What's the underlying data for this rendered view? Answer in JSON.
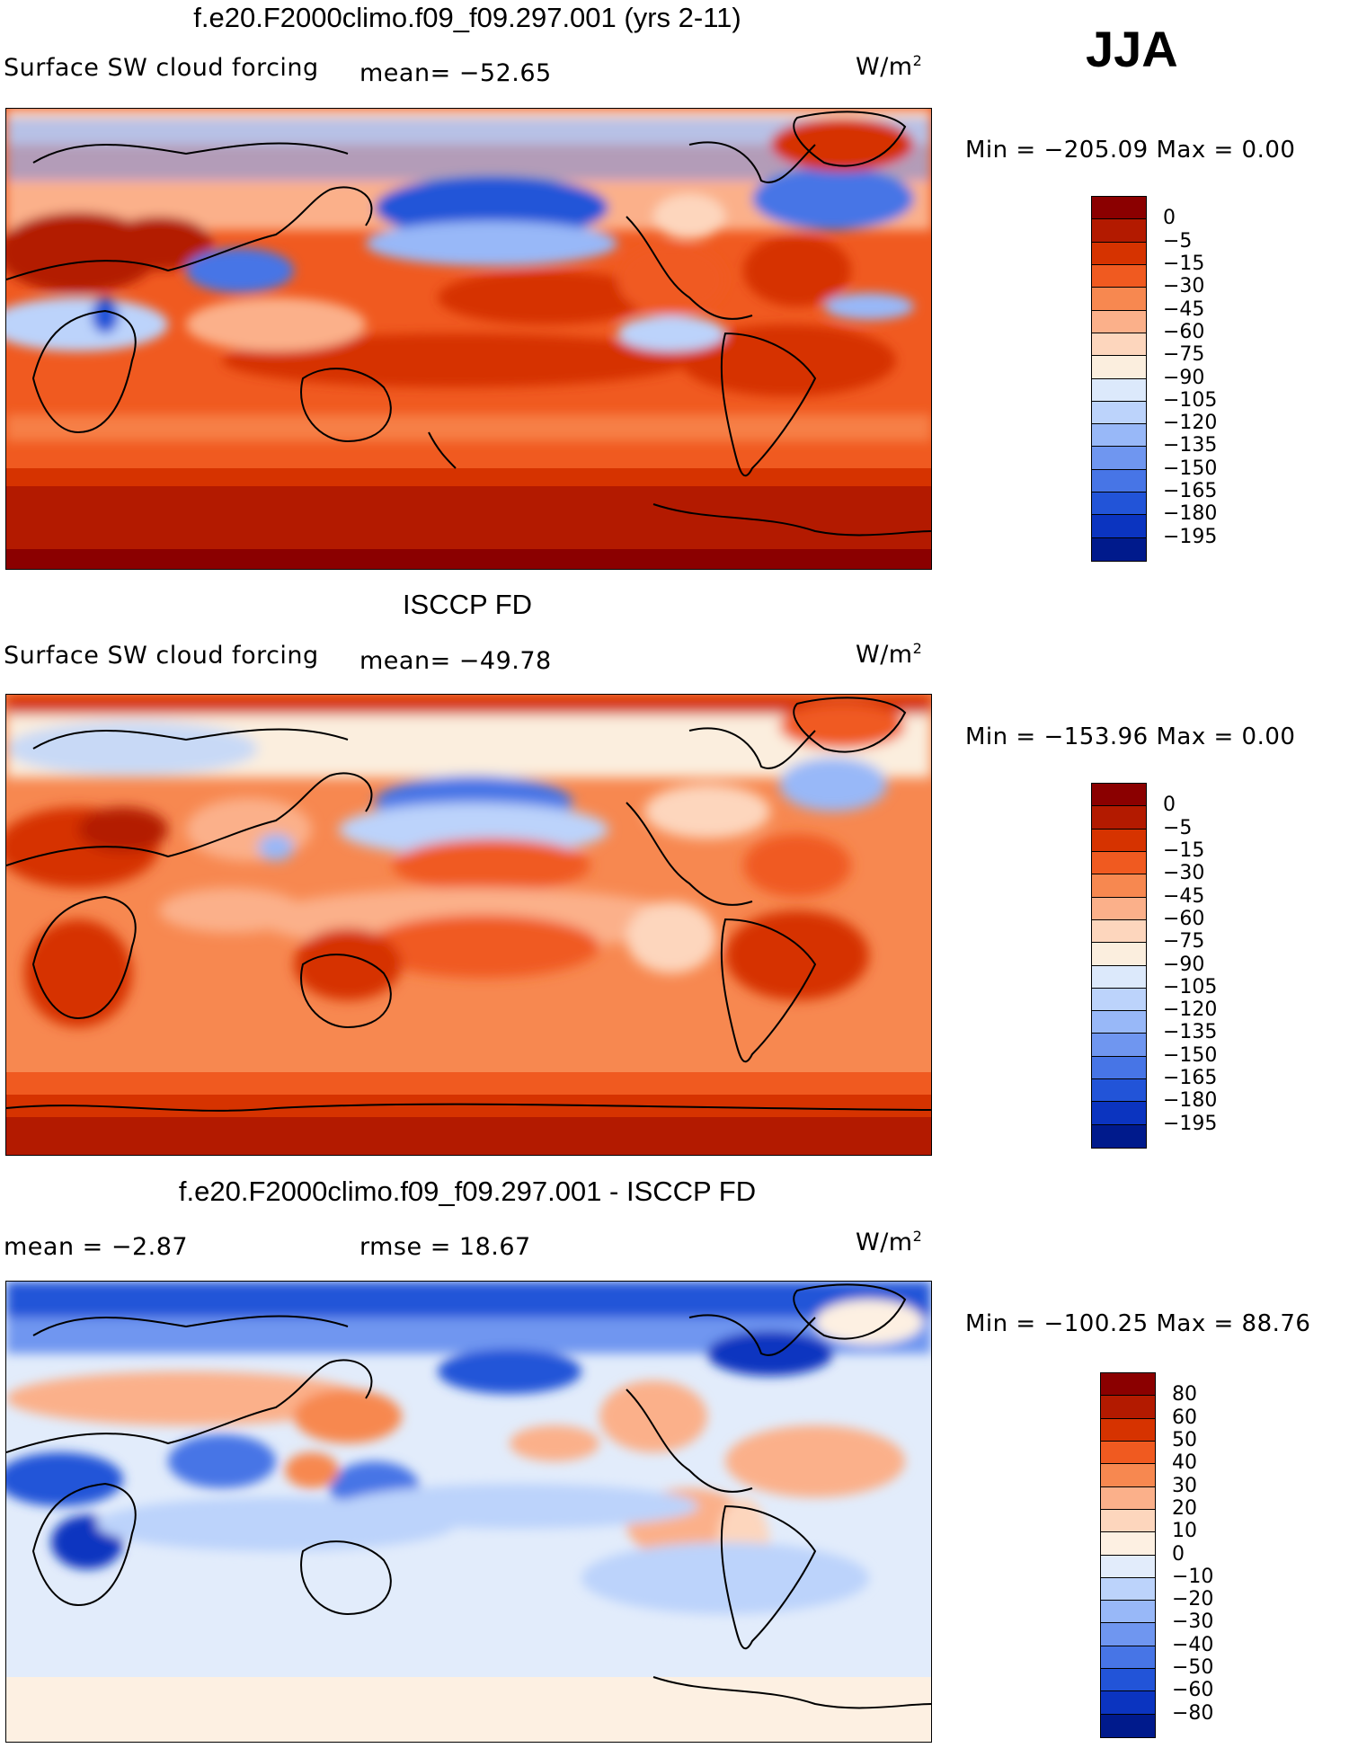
{
  "season": "JJA",
  "panels": [
    {
      "title": "f.e20.F2000climo.f09_f09.297.001 (yrs 2-11)",
      "left_label": "Surface SW cloud forcing",
      "center_label": "mean=  −52.65",
      "units_base": "W/m",
      "units_exp": "2",
      "minmax": "Min  =  −205.09  Max  =     0.00",
      "colorbar": {
        "labels": [
          "0",
          "−5",
          "−15",
          "−30",
          "−45",
          "−60",
          "−75",
          "−90",
          "−105",
          "−120",
          "−135",
          "−150",
          "−165",
          "−180",
          "−195"
        ],
        "colors": [
          "#8b0000",
          "#b31a00",
          "#d63300",
          "#f05a20",
          "#f78850",
          "#fbb08a",
          "#fdd6bd",
          "#fbeede",
          "#dce9fb",
          "#bcd3fb",
          "#98b8f8",
          "#6f96f0",
          "#4775e6",
          "#2254d8",
          "#0b34c0",
          "#001a8c"
        ]
      }
    },
    {
      "title": "ISCCP FD",
      "left_label": "Surface SW cloud forcing",
      "center_label": "mean=  −49.78",
      "units_base": "W/m",
      "units_exp": "2",
      "minmax": "Min  =  −153.96  Max  =     0.00",
      "colorbar": {
        "labels": [
          "0",
          "−5",
          "−15",
          "−30",
          "−45",
          "−60",
          "−75",
          "−90",
          "−105",
          "−120",
          "−135",
          "−150",
          "−165",
          "−180",
          "−195"
        ],
        "colors": [
          "#8b0000",
          "#b31a00",
          "#d63300",
          "#f05a20",
          "#f78850",
          "#fbb08a",
          "#fdd6bd",
          "#fbeede",
          "#dce9fb",
          "#bcd3fb",
          "#98b8f8",
          "#6f96f0",
          "#4775e6",
          "#2254d8",
          "#0b34c0",
          "#001a8c"
        ]
      }
    },
    {
      "title": "f.e20.F2000climo.f09_f09.297.001 - ISCCP FD",
      "left_label": "mean  =    −2.87",
      "center_label": "rmse  =    18.67",
      "units_base": "W/m",
      "units_exp": "2",
      "minmax": "Min  =  −100.25  Max  =   88.76",
      "colorbar": {
        "labels": [
          "80",
          "60",
          "50",
          "40",
          "30",
          "20",
          "10",
          "0",
          "−10",
          "−20",
          "−30",
          "−40",
          "−50",
          "−60",
          "−80"
        ],
        "colors": [
          "#8b0000",
          "#b31a00",
          "#d63300",
          "#f05a20",
          "#f78850",
          "#fbb08a",
          "#fdd6bd",
          "#fdf0e2",
          "#e2ecfb",
          "#bcd3fb",
          "#98b8f8",
          "#6f96f0",
          "#4775e6",
          "#2254d8",
          "#0b34c0",
          "#001a8c"
        ]
      }
    }
  ]
}
